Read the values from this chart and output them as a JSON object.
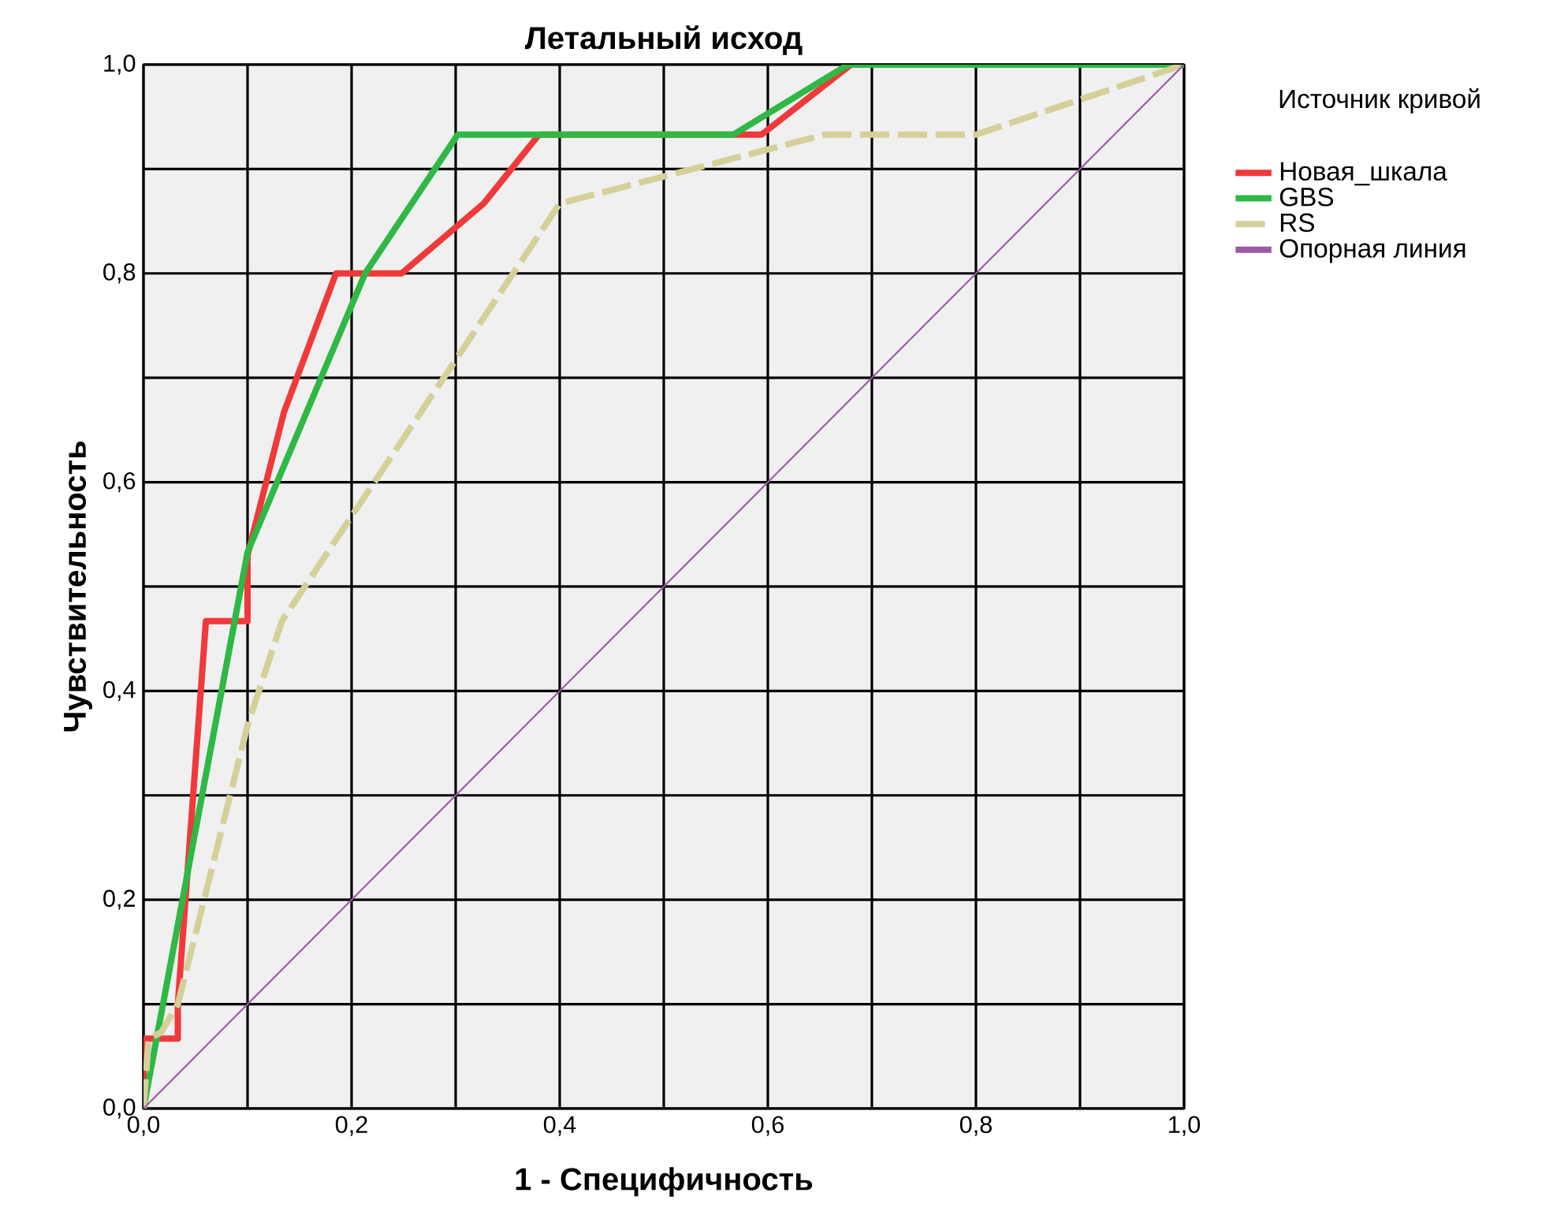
{
  "chart_data": {
    "type": "line",
    "title": "Летальный исход",
    "xlabel": "1 - Специфичность",
    "ylabel": "Чувствительность",
    "legend_title": "Источник кривой",
    "legend": "right",
    "grid": true,
    "marker": "none",
    "xlim": [
      0,
      1
    ],
    "ylim": [
      0,
      1
    ],
    "xticks": [
      {
        "value": 0,
        "label": "0,0"
      },
      {
        "value": 0.1,
        "label": null
      },
      {
        "value": 0.2,
        "label": "0,2"
      },
      {
        "value": 0.3,
        "label": null
      },
      {
        "value": 0.4,
        "label": "0,4"
      },
      {
        "value": 0.5,
        "label": null
      },
      {
        "value": 0.6,
        "label": "0,6"
      },
      {
        "value": 0.7,
        "label": null
      },
      {
        "value": 0.8,
        "label": "0,8"
      },
      {
        "value": 0.9,
        "label": null
      },
      {
        "value": 1,
        "label": "1,0"
      }
    ],
    "yticks": [
      {
        "value": 0,
        "label": "0,0"
      },
      {
        "value": 0.1,
        "label": null
      },
      {
        "value": 0.2,
        "label": "0,2"
      },
      {
        "value": 0.3,
        "label": null
      },
      {
        "value": 0.4,
        "label": "0,4"
      },
      {
        "value": 0.5,
        "label": null
      },
      {
        "value": 0.6,
        "label": "0,6"
      },
      {
        "value": 0.7,
        "label": null
      },
      {
        "value": 0.8,
        "label": "0,8"
      },
      {
        "value": 0.9,
        "label": null
      },
      {
        "value": 1,
        "label": "1,0"
      }
    ],
    "series": [
      {
        "name": "Новая_шкала",
        "color": "#f0393a",
        "line_style": "solid",
        "x": [
          0,
          0,
          0.033,
          0.033,
          0.06,
          0.1,
          0.1,
          0.135,
          0.185,
          0.248,
          0.327,
          0.38,
          0.594,
          0.68
        ],
        "values": [
          0,
          0.067,
          0.067,
          0.1,
          0.467,
          0.467,
          0.53,
          0.667,
          0.8,
          0.8,
          0.867,
          0.933,
          0.933,
          1
        ]
      },
      {
        "name": "GBS",
        "color": "#2fb845",
        "line_style": "solid",
        "x": [
          0,
          0.1,
          0.213,
          0.302,
          0.567,
          0.677,
          1
        ],
        "values": [
          0,
          0.533,
          0.8,
          0.933,
          0.933,
          1,
          1
        ]
      },
      {
        "name": "RS",
        "color": "#d5cf9a",
        "line_style": "dashed",
        "x": [
          0,
          0.005,
          0.017,
          0.033,
          0.05,
          0.1,
          0.133,
          0.4,
          0.655,
          0.8,
          1
        ],
        "values": [
          0,
          0.067,
          0.073,
          0.1,
          0.167,
          0.367,
          0.467,
          0.867,
          0.933,
          0.933,
          1
        ]
      },
      {
        "name": "Опорная линия",
        "color": "#9b59a6",
        "line_style": "solid",
        "x": [
          0,
          1
        ],
        "values": [
          0,
          1
        ]
      }
    ]
  }
}
